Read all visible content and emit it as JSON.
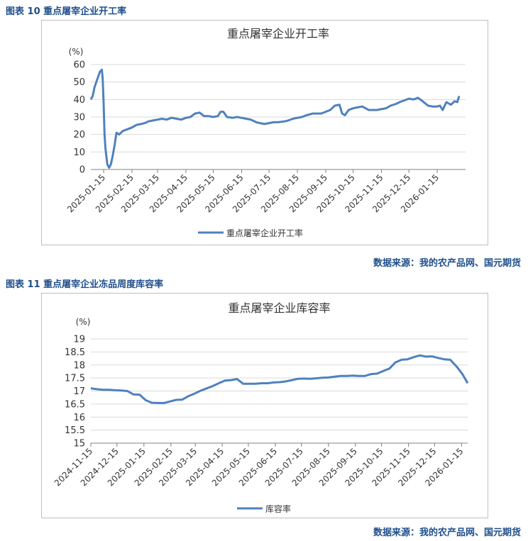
{
  "figures": [
    {
      "caption": "图表 10 重点屠宰企业开工率",
      "source": "数据来源：我的农产品网、国元期货",
      "chart_data": {
        "type": "line",
        "title": "重点屠宰企业开工率",
        "unit_label": "(%)",
        "ylim": [
          0,
          60
        ],
        "yticks": [
          0,
          10,
          20,
          30,
          40,
          50,
          60
        ],
        "xlim": [
          "2025-01-01",
          "2026-02-15"
        ],
        "xticks": [
          "2025-01-15",
          "2025-02-15",
          "2025-03-15",
          "2025-04-15",
          "2025-05-15",
          "2025-06-15",
          "2025-07-15",
          "2025-08-15",
          "2025-09-15",
          "2025-10-15",
          "2025-11-15",
          "2025-12-15",
          "2026-01-15"
        ],
        "legend_position": "bottom",
        "grid": "horizontal",
        "color": "#4f81bd",
        "series": [
          {
            "name": "重点屠宰企业开工率",
            "x": [
              "2025-01-01",
              "2025-01-03",
              "2025-01-05",
              "2025-01-07",
              "2025-01-09",
              "2025-01-11",
              "2025-01-13",
              "2025-01-14",
              "2025-01-15",
              "2025-01-16",
              "2025-01-17",
              "2025-01-19",
              "2025-01-21",
              "2025-01-23",
              "2025-01-25",
              "2025-01-27",
              "2025-01-29",
              "2025-02-01",
              "2025-02-05",
              "2025-02-10",
              "2025-02-15",
              "2025-02-20",
              "2025-02-25",
              "2025-03-01",
              "2025-03-05",
              "2025-03-10",
              "2025-03-15",
              "2025-03-20",
              "2025-03-25",
              "2025-03-30",
              "2025-04-05",
              "2025-04-10",
              "2025-04-15",
              "2025-04-20",
              "2025-04-25",
              "2025-04-30",
              "2025-05-05",
              "2025-05-10",
              "2025-05-15",
              "2025-05-20",
              "2025-05-23",
              "2025-05-26",
              "2025-05-30",
              "2025-06-05",
              "2025-06-10",
              "2025-06-15",
              "2025-06-20",
              "2025-06-25",
              "2025-07-01",
              "2025-07-05",
              "2025-07-10",
              "2025-07-15",
              "2025-07-20",
              "2025-07-25",
              "2025-08-01",
              "2025-08-05",
              "2025-08-10",
              "2025-08-15",
              "2025-08-20",
              "2025-08-25",
              "2025-09-01",
              "2025-09-05",
              "2025-09-10",
              "2025-09-15",
              "2025-09-20",
              "2025-09-25",
              "2025-09-30",
              "2025-10-03",
              "2025-10-06",
              "2025-10-10",
              "2025-10-15",
              "2025-10-20",
              "2025-10-25",
              "2025-11-01",
              "2025-11-05",
              "2025-11-10",
              "2025-11-15",
              "2025-11-20",
              "2025-11-25",
              "2025-12-01",
              "2025-12-05",
              "2025-12-10",
              "2025-12-15",
              "2025-12-20",
              "2025-12-25",
              "2025-12-30",
              "2026-01-05",
              "2026-01-10",
              "2026-01-15",
              "2026-01-18",
              "2026-01-21",
              "2026-01-25",
              "2026-01-30",
              "2026-02-03",
              "2026-02-06",
              "2026-02-08"
            ],
            "values": [
              40,
              42,
              47,
              50,
              53,
              56,
              57,
              52,
              38,
              20,
              12,
              3,
              1,
              3,
              8,
              14,
              21,
              20,
              22,
              23,
              24,
              25.5,
              26,
              26.5,
              27.5,
              28,
              28.5,
              29,
              28.5,
              29.5,
              29,
              28.5,
              29.5,
              30,
              32,
              32.5,
              30.5,
              30.5,
              30,
              30.5,
              33,
              33,
              30,
              29.5,
              30,
              29.5,
              29,
              28.5,
              27,
              26.5,
              26,
              26.5,
              27,
              27,
              27.5,
              28,
              29,
              29.5,
              30,
              31,
              32,
              32,
              32,
              33,
              34,
              36.5,
              37,
              32,
              31,
              34,
              35,
              35.5,
              36,
              34,
              34,
              34,
              34.5,
              35,
              36.5,
              37.5,
              38.5,
              39.5,
              40.5,
              40,
              41,
              39,
              36.5,
              36,
              36,
              36.5,
              34,
              38.5,
              37,
              39,
              38.5,
              42
            ]
          }
        ]
      }
    },
    {
      "caption": "图表 11 重点屠宰企业冻品周度库容率",
      "source": "数据来源：我的农产品网、国元期货",
      "chart_data": {
        "type": "line",
        "title": "重点屠宰企业库容率",
        "unit_label": "(%)",
        "ylim": [
          15,
          19
        ],
        "yticks": [
          15,
          15.5,
          16,
          16.5,
          17,
          17.5,
          18,
          18.5,
          19
        ],
        "xlim": [
          "2024-11-15",
          "2026-01-22"
        ],
        "xticks": [
          "2024-11-15",
          "2024-12-15",
          "2025-01-15",
          "2025-02-15",
          "2025-03-15",
          "2025-04-15",
          "2025-05-15",
          "2025-06-15",
          "2025-07-15",
          "2025-08-15",
          "2025-09-15",
          "2025-10-15",
          "2025-11-15",
          "2025-12-15",
          "2026-01-15"
        ],
        "legend_position": "bottom",
        "grid": "horizontal",
        "color": "#4f81bd",
        "series": [
          {
            "name": "库容率",
            "x": [
              "2024-11-15",
              "2024-11-22",
              "2024-11-29",
              "2024-12-06",
              "2024-12-13",
              "2024-12-20",
              "2024-12-27",
              "2025-01-03",
              "2025-01-10",
              "2025-01-17",
              "2025-01-24",
              "2025-01-31",
              "2025-02-07",
              "2025-02-14",
              "2025-02-21",
              "2025-02-28",
              "2025-03-07",
              "2025-03-14",
              "2025-03-21",
              "2025-03-28",
              "2025-04-04",
              "2025-04-11",
              "2025-04-18",
              "2025-04-25",
              "2025-05-02",
              "2025-05-09",
              "2025-05-16",
              "2025-05-23",
              "2025-05-30",
              "2025-06-06",
              "2025-06-13",
              "2025-06-20",
              "2025-06-27",
              "2025-07-04",
              "2025-07-11",
              "2025-07-18",
              "2025-07-25",
              "2025-08-01",
              "2025-08-08",
              "2025-08-15",
              "2025-08-22",
              "2025-08-29",
              "2025-09-05",
              "2025-09-12",
              "2025-09-19",
              "2025-09-26",
              "2025-10-03",
              "2025-10-10",
              "2025-10-17",
              "2025-10-24",
              "2025-10-31",
              "2025-11-07",
              "2025-11-14",
              "2025-11-21",
              "2025-11-28",
              "2025-12-05",
              "2025-12-12",
              "2025-12-19",
              "2025-12-26",
              "2026-01-02",
              "2026-01-09",
              "2026-01-16",
              "2026-01-22"
            ],
            "values": [
              17.1,
              17.07,
              17.05,
              17.05,
              17.03,
              17.02,
              17,
              16.87,
              16.86,
              16.65,
              16.55,
              16.54,
              16.54,
              16.6,
              16.66,
              16.67,
              16.8,
              16.9,
              17.01,
              17.1,
              17.19,
              17.3,
              17.4,
              17.42,
              17.46,
              17.28,
              17.28,
              17.28,
              17.3,
              17.3,
              17.33,
              17.34,
              17.37,
              17.42,
              17.47,
              17.48,
              17.47,
              17.49,
              17.51,
              17.52,
              17.55,
              17.58,
              17.58,
              17.59,
              17.58,
              17.58,
              17.65,
              17.67,
              17.77,
              17.86,
              18.1,
              18.2,
              18.22,
              18.3,
              18.37,
              18.32,
              18.33,
              18.27,
              18.22,
              18.2,
              17.95,
              17.65,
              17.3
            ]
          }
        ]
      }
    }
  ]
}
